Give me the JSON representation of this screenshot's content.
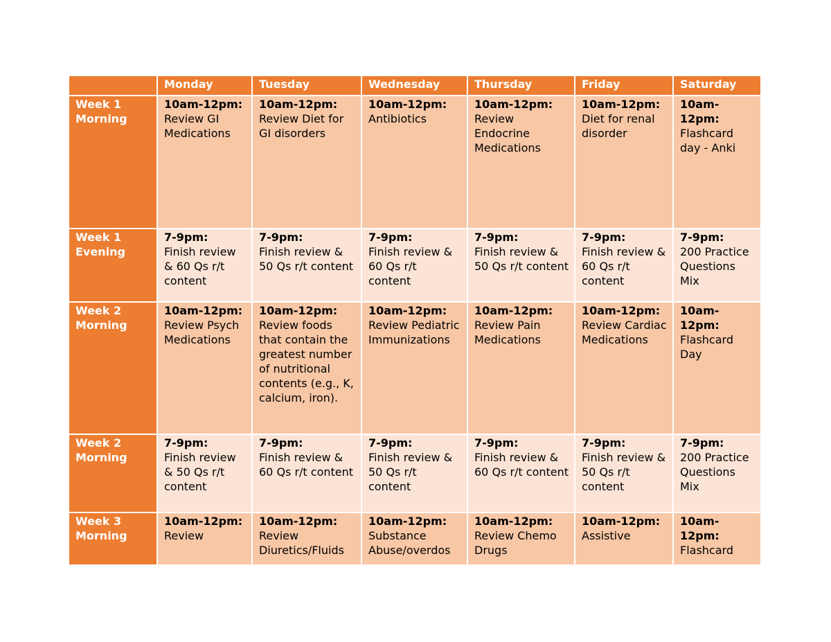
{
  "table": {
    "header": [
      "Monday",
      "Tuesday",
      "Wednesday",
      "Thursday",
      "Friday",
      "Saturday"
    ],
    "rows": [
      {
        "label": "Week 1 Morning",
        "cells": [
          {
            "time": "10am-12pm:",
            "text": "Review GI Medications"
          },
          {
            "time": "10am-12pm:",
            "text": "Review Diet for GI disorders"
          },
          {
            "time": "10am-12pm:",
            "text": "Antibiotics"
          },
          {
            "time": "10am-12pm:",
            "text": "Review Endocrine Medications"
          },
          {
            "time": "10am-12pm:",
            "text": "Diet for renal disorder"
          },
          {
            "time": "10am-12pm:",
            "text": "Flashcard day - Anki"
          }
        ]
      },
      {
        "label": "Week 1 Evening",
        "cells": [
          {
            "time": "7-9pm:",
            "text": "Finish review & 60 Qs r/t content"
          },
          {
            "time": "7-9pm:",
            "text": "Finish review & 50 Qs r/t content"
          },
          {
            "time": "7-9pm:",
            "text": "Finish review & 60 Qs r/t content"
          },
          {
            "time": "7-9pm:",
            "text": "Finish review & 50 Qs r/t content"
          },
          {
            "time": "7-9pm:",
            "text": "Finish review & 60 Qs r/t content"
          },
          {
            "time": "7-9pm:",
            "text": "200 Practice Questions Mix"
          }
        ]
      },
      {
        "label": "Week 2 Morning",
        "cells": [
          {
            "time": "10am-12pm:",
            "text": "Review Psych Medications"
          },
          {
            "time": "10am-12pm:",
            "text": "Review foods that contain the greatest number of nutritional contents (e.g., K, calcium, iron)."
          },
          {
            "time": "10am-12pm:",
            "text": "Review Pediatric Immunizations"
          },
          {
            "time": "10am-12pm:",
            "text": "Review Pain Medications"
          },
          {
            "time": "10am-12pm:",
            "text": "Review Cardiac Medications"
          },
          {
            "time": "10am-12pm:",
            "text": "Flashcard Day"
          }
        ]
      },
      {
        "label": "Week 2 Morning",
        "cells": [
          {
            "time": "7-9pm:",
            "text": "Finish review & 50 Qs r/t content"
          },
          {
            "time": "7-9pm:",
            "text": "Finish review & 60 Qs r/t content"
          },
          {
            "time": "7-9pm:",
            "text": "Finish review & 50 Qs r/t content"
          },
          {
            "time": "7-9pm:",
            "text": "Finish review & 60 Qs r/t content"
          },
          {
            "time": "7-9pm:",
            "text": "Finish review & 50 Qs r/t content"
          },
          {
            "time": "7-9pm:",
            "text": "200 Practice Questions Mix"
          }
        ]
      },
      {
        "label": "Week 3 Morning",
        "cells": [
          {
            "time": "10am-12pm:",
            "text": "Review"
          },
          {
            "time": "10am-12pm:",
            "text": "Review Diuretics/Fluids"
          },
          {
            "time": "10am-12pm:",
            "text": "Substance Abuse/overdos"
          },
          {
            "time": "10am-12pm:",
            "text": "Review Chemo Drugs"
          },
          {
            "time": "10am-12pm:",
            "text": "Assistive"
          },
          {
            "time": "10am-12pm:",
            "text": "Flashcard"
          }
        ]
      }
    ]
  }
}
